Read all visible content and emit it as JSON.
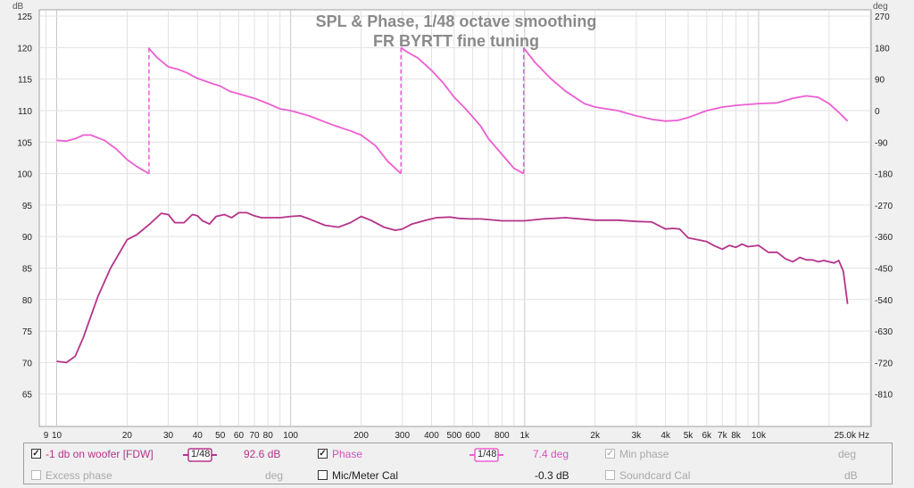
{
  "chart_data": {
    "type": "line",
    "title": "SPL & Phase, 1/48 octave smoothing",
    "subtitle": "FR BYRTT fine tuning",
    "xscale": "log",
    "xlim": [
      8.5,
      30000
    ],
    "ylim_left": [
      60,
      126
    ],
    "ylim_right": [
      -900,
      288
    ],
    "ylabel_left": "dB",
    "ylabel_right": "deg",
    "x_ticks": [
      {
        "v": 9,
        "l": "9"
      },
      {
        "v": 10,
        "l": "10"
      },
      {
        "v": 20,
        "l": "20"
      },
      {
        "v": 30,
        "l": "30"
      },
      {
        "v": 40,
        "l": "40"
      },
      {
        "v": 50,
        "l": "50"
      },
      {
        "v": 60,
        "l": "60"
      },
      {
        "v": 70,
        "l": "70"
      },
      {
        "v": 80,
        "l": "80"
      },
      {
        "v": 100,
        "l": "100"
      },
      {
        "v": 200,
        "l": "200"
      },
      {
        "v": 300,
        "l": "300"
      },
      {
        "v": 400,
        "l": "400"
      },
      {
        "v": 500,
        "l": "500"
      },
      {
        "v": 600,
        "l": "600"
      },
      {
        "v": 800,
        "l": "800"
      },
      {
        "v": 1000,
        "l": "1k"
      },
      {
        "v": 2000,
        "l": "2k"
      },
      {
        "v": 3000,
        "l": "3k"
      },
      {
        "v": 4000,
        "l": "4k"
      },
      {
        "v": 5000,
        "l": "5k"
      },
      {
        "v": 6000,
        "l": "6k"
      },
      {
        "v": 7000,
        "l": "7k"
      },
      {
        "v": 8000,
        "l": "8k"
      },
      {
        "v": 10000,
        "l": "10k"
      },
      {
        "v": 25000,
        "l": "25.0k Hz"
      }
    ],
    "y_ticks_left": [
      65,
      70,
      75,
      80,
      85,
      90,
      95,
      100,
      105,
      110,
      115,
      120,
      125
    ],
    "y_ticks_right": [
      -810,
      -720,
      -630,
      -540,
      -450,
      -360,
      -270,
      -180,
      -90,
      0,
      90,
      180,
      270
    ],
    "grid": true,
    "series": [
      {
        "name": "-1 db on woofer [FDW]",
        "color": "#b5338a",
        "axis": "left",
        "x": [
          10,
          11,
          12,
          13,
          15,
          17,
          20,
          22,
          25,
          28,
          30,
          32,
          35,
          38,
          40,
          42,
          45,
          48,
          52,
          56,
          60,
          65,
          70,
          75,
          80,
          90,
          100,
          110,
          120,
          140,
          160,
          180,
          200,
          220,
          250,
          280,
          300,
          330,
          380,
          420,
          480,
          520,
          580,
          650,
          800,
          1000,
          1200,
          1500,
          2000,
          2500,
          3000,
          3500,
          4000,
          4300,
          4600,
          5000,
          5500,
          6000,
          6500,
          7000,
          7500,
          8000,
          8500,
          9000,
          10000,
          11000,
          12000,
          13000,
          14000,
          15000,
          16000,
          17000,
          18000,
          19000,
          20000,
          21000,
          22000,
          23000,
          24000
        ],
        "y": [
          70.2,
          70.0,
          71.0,
          74.0,
          80.5,
          85.0,
          89.5,
          90.3,
          92.0,
          93.7,
          93.5,
          92.2,
          92.2,
          93.5,
          93.3,
          92.5,
          92.0,
          93.2,
          93.5,
          93.0,
          93.8,
          93.8,
          93.3,
          93.0,
          93.0,
          93.0,
          93.2,
          93.3,
          92.8,
          91.8,
          91.5,
          92.2,
          93.2,
          92.6,
          91.5,
          91.0,
          91.2,
          92.0,
          92.6,
          93.0,
          93.1,
          92.9,
          92.8,
          92.8,
          92.5,
          92.5,
          92.8,
          93.0,
          92.6,
          92.6,
          92.4,
          92.3,
          91.2,
          91.3,
          91.2,
          89.8,
          89.5,
          89.2,
          88.5,
          88.0,
          88.6,
          88.3,
          88.8,
          88.4,
          88.6,
          87.5,
          87.5,
          86.5,
          86.0,
          86.7,
          86.3,
          86.3,
          86.0,
          86.2,
          86.0,
          85.8,
          86.2,
          84.5,
          79.3
        ]
      },
      {
        "name": "Phase",
        "color": "#ec5ed2",
        "axis": "right",
        "x": [
          10,
          11,
          12,
          13,
          14,
          16,
          18,
          20,
          22,
          24.8,
          24.801,
          25,
          27,
          30,
          33,
          36,
          40,
          45,
          50,
          55,
          60,
          70,
          80,
          90,
          100,
          120,
          150,
          180,
          200,
          230,
          260,
          296,
          296.01,
          310,
          350,
          400,
          450,
          500,
          550,
          600,
          650,
          700,
          800,
          900,
          990,
          990.01,
          1100,
          1300,
          1500,
          1800,
          2000,
          2500,
          3000,
          3500,
          4000,
          4500,
          5000,
          6000,
          7000,
          8000,
          10000,
          12000,
          14000,
          16000,
          18000,
          20000,
          22000,
          24000
        ],
        "y": [
          -85,
          -87,
          -80,
          -70,
          -70,
          -85,
          -110,
          -140,
          -160,
          -180,
          180,
          175,
          150,
          125,
          118,
          108,
          92,
          80,
          70,
          55,
          48,
          35,
          20,
          5,
          0,
          -15,
          -40,
          -58,
          -70,
          -100,
          -145,
          -180,
          180,
          170,
          150,
          115,
          78,
          38,
          10,
          -18,
          -45,
          -80,
          -125,
          -165,
          -180,
          180,
          140,
          90,
          55,
          20,
          10,
          0,
          -15,
          -25,
          -30,
          -28,
          -20,
          0,
          10,
          15,
          20,
          22,
          35,
          42,
          38,
          20,
          -5,
          -30
        ]
      }
    ],
    "phase_wraps": [
      24.8,
      296,
      990
    ]
  },
  "title_lines": [
    "SPL & Phase, 1/48 octave smoothing",
    "FR BYRTT fine tuning"
  ],
  "axis_units": {
    "left": "dB",
    "right": "deg"
  },
  "legend": {
    "row1": {
      "spl_label": "-1 db on woofer [FDW]",
      "spl_smoothing": "1/48",
      "spl_value": "92.6 dB",
      "phase_label": "Phase",
      "phase_smoothing": "1/48",
      "phase_value": "7.4 deg",
      "minphase_label": "Min phase",
      "minphase_unit": "deg"
    },
    "row2": {
      "excess_label": "Excess phase",
      "excess_unit": "deg",
      "mic_label": "Mic/Meter Cal",
      "mic_value": "-0.3 dB",
      "soundcard_label": "Soundcard Cal",
      "soundcard_unit": "dB"
    },
    "colors": {
      "spl": "#b5338a",
      "phase": "#ec5ed2",
      "disabled": "#a8a8a8"
    }
  }
}
